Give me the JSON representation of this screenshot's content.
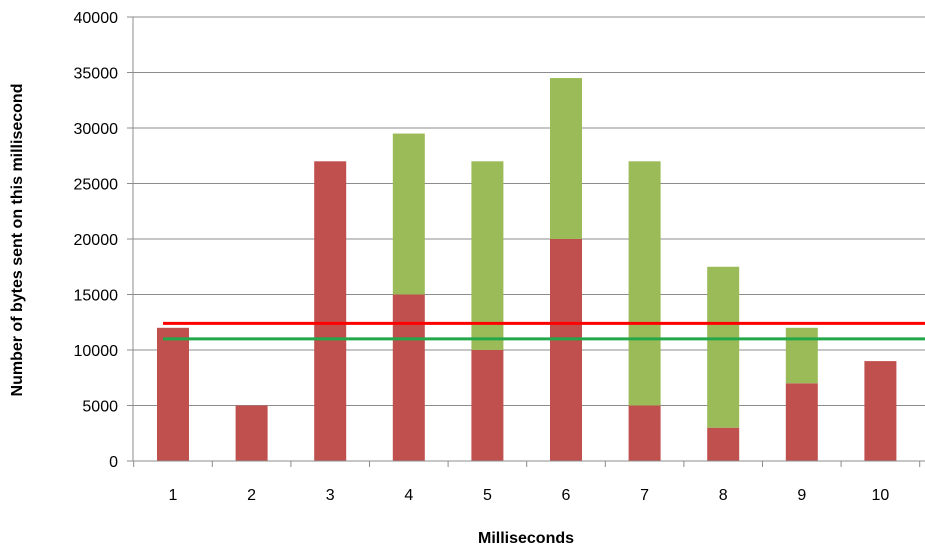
{
  "chart_data": {
    "type": "bar",
    "stacked": true,
    "title": "",
    "xlabel": "Milliseconds",
    "ylabel": "Number of bytes sent on this millisecond",
    "categories": [
      "1",
      "2",
      "3",
      "4",
      "5",
      "6",
      "7",
      "8",
      "9",
      "10"
    ],
    "series": [
      {
        "color": "#c0504d",
        "values": [
          12000,
          5000,
          27000,
          15000,
          10000,
          20000,
          5000,
          3000,
          7000,
          9000
        ]
      },
      {
        "color": "#9bbb59",
        "values": [
          0,
          0,
          0,
          14500,
          17000,
          14500,
          22000,
          14500,
          5000,
          0
        ]
      }
    ],
    "reference_lines": [
      {
        "y": 12400,
        "color": "#ff0000"
      },
      {
        "y": 11000,
        "color": "#22a84a"
      }
    ],
    "yticks": [
      "0",
      "5000",
      "10000",
      "15000",
      "20000",
      "25000",
      "30000",
      "35000",
      "40000"
    ],
    "ylim": [
      0,
      40000
    ],
    "grid": true,
    "legend": "none"
  }
}
